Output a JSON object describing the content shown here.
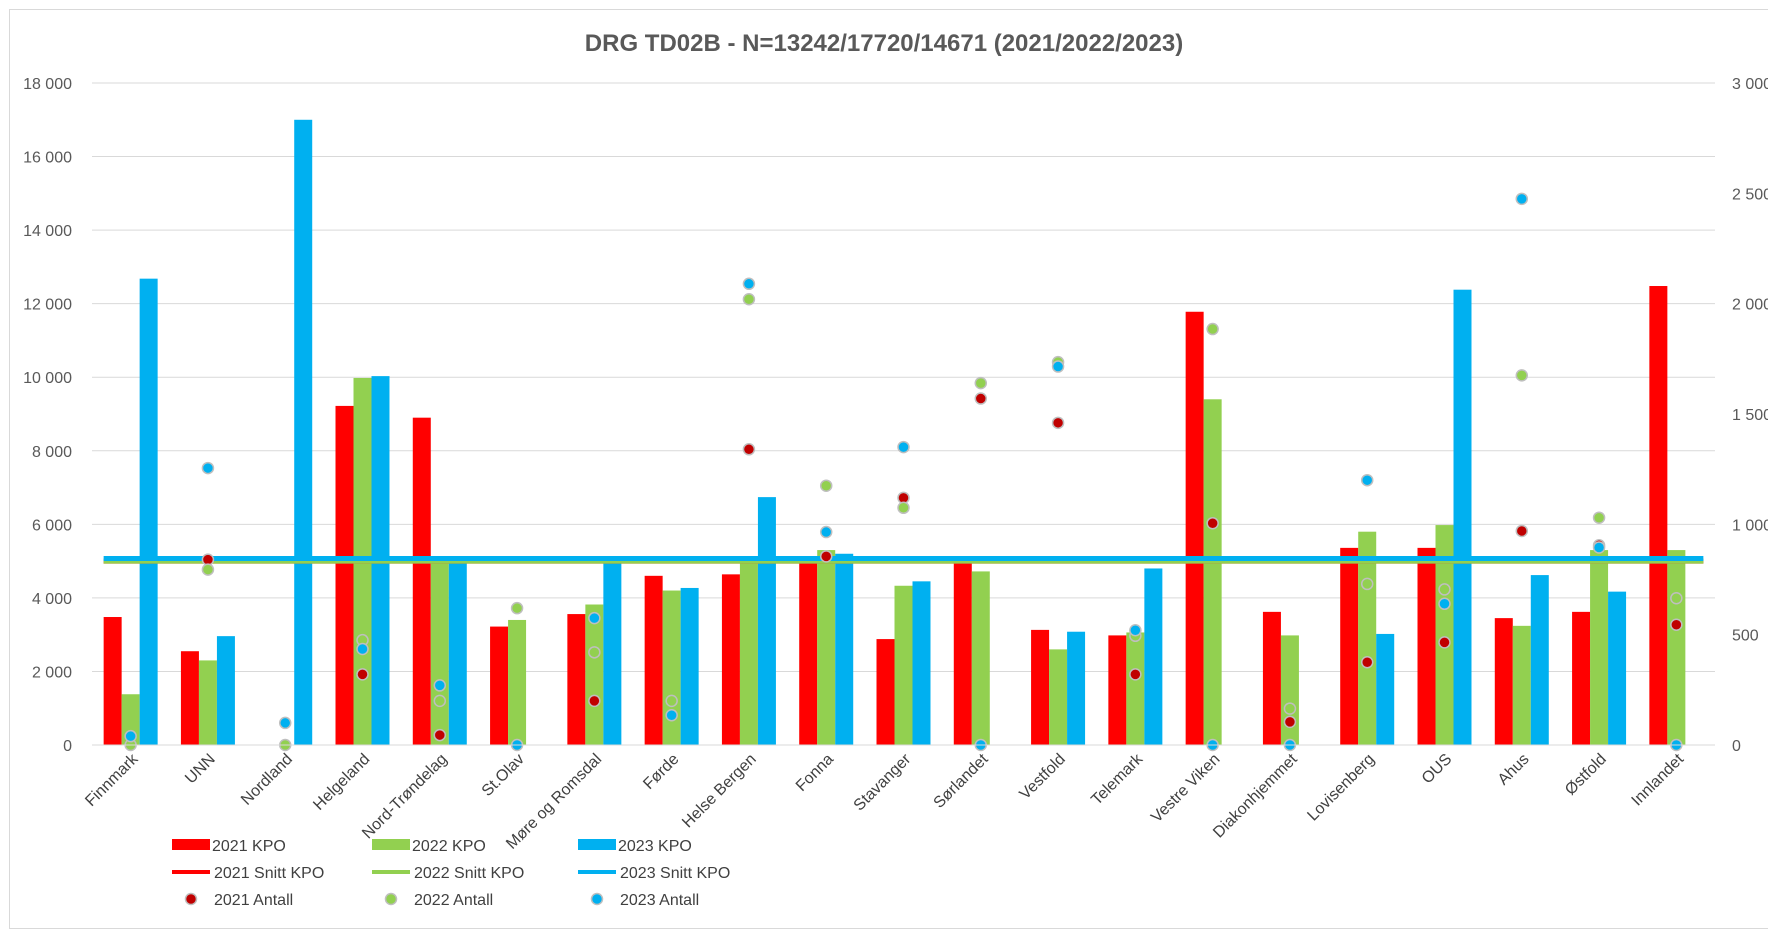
{
  "chart_data": {
    "type": "bar",
    "title": "DRG TD02B - N=13242/17720/14671  (2021/2022/2023)",
    "categories": [
      "Finnmark",
      "UNN",
      "Nordland",
      "Helgeland",
      "Nord-Trøndelag",
      "St.Olav",
      "Møre og Romsdal",
      "Førde",
      "Helse Bergen",
      "Fonna",
      "Stavanger",
      "Sørlandet",
      "Vestfold",
      "Telemark",
      "Vestre Viken",
      "Diakonhjemmet",
      "Lovisenberg",
      "OUS",
      "Ahus",
      "Østfold",
      "Innlandet"
    ],
    "y_left": {
      "min": 0,
      "max": 18000,
      "ticks": [
        0,
        2000,
        4000,
        6000,
        8000,
        10000,
        12000,
        14000,
        16000,
        18000
      ],
      "tick_labels": [
        "0",
        "2 000",
        "4 000",
        "6 000",
        "8 000",
        "10 000",
        "12 000",
        "14 000",
        "16 000",
        "18 000"
      ]
    },
    "y_right": {
      "min": 0,
      "max": 3000,
      "ticks": [
        0,
        500,
        1000,
        1500,
        2000,
        2500,
        3000
      ],
      "tick_labels": [
        "0",
        "500",
        "1 000",
        "1 500",
        "2 000",
        "2 500",
        "3 000"
      ]
    },
    "grid": true,
    "legend_position": "bottom-left",
    "bar_series": [
      {
        "name": "2021 KPO",
        "color": "#ff0000",
        "values": [
          3480,
          2550,
          0,
          9220,
          8900,
          3220,
          3560,
          4600,
          4640,
          5000,
          2880,
          5000,
          3130,
          2980,
          11780,
          3620,
          5360,
          5360,
          3450,
          3620,
          12480
        ]
      },
      {
        "name": "2022 KPO",
        "color": "#92d050",
        "values": [
          1380,
          2300,
          0,
          9980,
          5000,
          3400,
          3820,
          4200,
          5000,
          5300,
          4330,
          4720,
          2600,
          3060,
          9400,
          2980,
          5800,
          5980,
          3240,
          5300,
          5300
        ]
      },
      {
        "name": "2023 KPO",
        "color": "#00b0f0",
        "values": [
          12680,
          2960,
          17000,
          10030,
          5000,
          0,
          5000,
          4270,
          6740,
          5200,
          4450,
          0,
          3080,
          4800,
          0,
          0,
          3020,
          12380,
          4620,
          4170,
          0
        ]
      }
    ],
    "line_series": [
      {
        "name": "2021 Snitt KPO",
        "color": "#ff0000",
        "value": 5000
      },
      {
        "name": "2022 Snitt KPO",
        "color": "#92d050",
        "value": 5000
      },
      {
        "name": "2023 Snitt KPO",
        "color": "#00b0f0",
        "value": 5070
      }
    ],
    "scatter_series": [
      {
        "name": "2021 Antall",
        "color": "#c00000",
        "values": [
          null,
          840,
          null,
          320,
          45,
          null,
          200,
          null,
          1340,
          855,
          1120,
          1570,
          1460,
          320,
          1005,
          105,
          375,
          465,
          970,
          905,
          545
        ]
      },
      {
        "name": "2022 Antall",
        "color": "#92d050",
        "values": [
          0,
          795,
          0,
          475,
          200,
          620,
          420,
          200,
          2020,
          1175,
          1075,
          1640,
          1735,
          495,
          1885,
          165,
          730,
          705,
          1675,
          1030,
          665
        ]
      },
      {
        "name": "2023 Antall",
        "color": "#00b0f0",
        "values": [
          40,
          1255,
          100,
          435,
          270,
          0,
          575,
          135,
          2090,
          965,
          1350,
          0,
          1715,
          520,
          0,
          0,
          1200,
          640,
          2475,
          895,
          0
        ]
      }
    ]
  }
}
